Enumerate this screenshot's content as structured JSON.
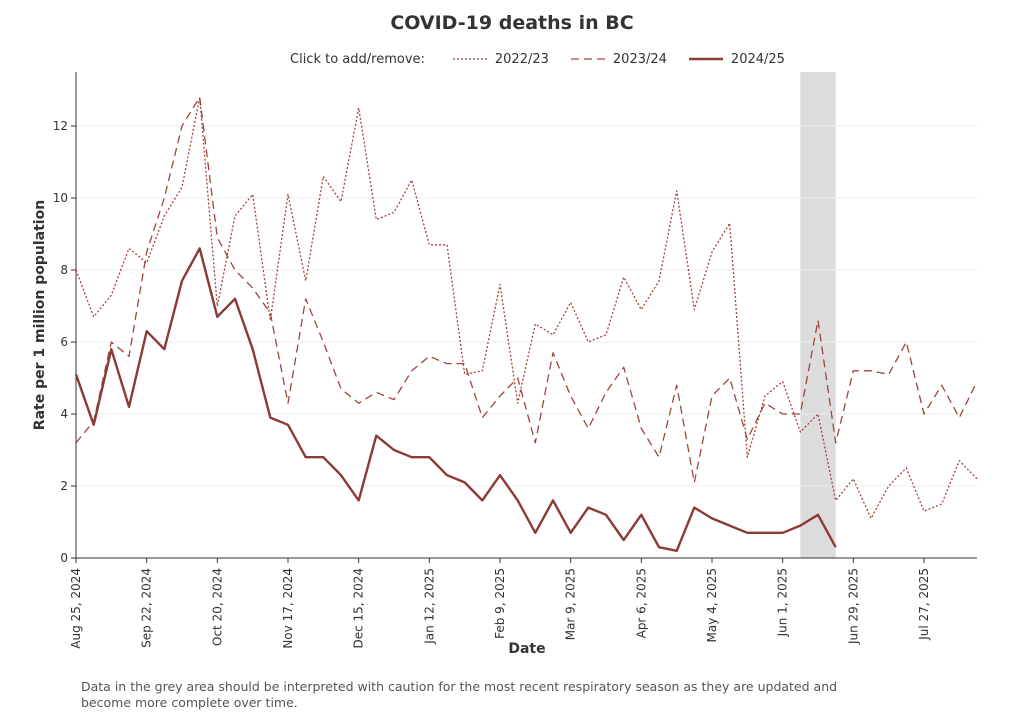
{
  "chart_data": {
    "type": "line",
    "title": "COVID-19 deaths in BC",
    "xlabel": "Date",
    "ylabel": "Rate per 1 million population",
    "legend_prompt": "Click to add/remove:",
    "ylim": [
      0,
      13.5
    ],
    "yticks": [
      "0",
      "2",
      "4",
      "6",
      "8",
      "10",
      "12"
    ],
    "xticks": [
      "Aug 25, 2024",
      "Sep 22, 2024",
      "Oct 20, 2024",
      "Nov 17, 2024",
      "Dec 15, 2024",
      "Jan 12, 2025",
      "Feb 9, 2025",
      "Mar 9, 2025",
      "Apr 6, 2025",
      "May 4, 2025",
      "Jun 1, 2025",
      "Jun 29, 2025",
      "Jul 27, 2025"
    ],
    "x_dates": [
      "Aug 25",
      "Sep 1",
      "Sep 8",
      "Sep 15",
      "Sep 22",
      "Sep 29",
      "Oct 6",
      "Oct 13",
      "Oct 20",
      "Oct 27",
      "Nov 3",
      "Nov 10",
      "Nov 17",
      "Nov 24",
      "Dec 1",
      "Dec 8",
      "Dec 15",
      "Dec 22",
      "Dec 29",
      "Jan 5",
      "Jan 12",
      "Jan 19",
      "Jan 26",
      "Feb 2",
      "Feb 9",
      "Feb 16",
      "Feb 23",
      "Mar 2",
      "Mar 9",
      "Mar 16",
      "Mar 23",
      "Mar 30",
      "Apr 6",
      "Apr 13",
      "Apr 20",
      "Apr 27",
      "May 4",
      "May 11",
      "May 18",
      "May 25",
      "Jun 1",
      "Jun 8",
      "Jun 15",
      "Jun 22",
      "Jun 29",
      "Jul 6",
      "Jul 13",
      "Jul 20",
      "Jul 27",
      "Aug 3",
      "Aug 10",
      "Aug 17"
    ],
    "grid": true,
    "legend_position": "top",
    "shaded_region": {
      "from": "Jun 8",
      "to": "Jun 22",
      "color": "#dcdcdc"
    },
    "series": [
      {
        "name": "2022/23",
        "style": "dotted",
        "color": "#a0453e",
        "values": [
          8.0,
          6.7,
          7.3,
          8.6,
          8.2,
          9.5,
          10.3,
          12.8,
          7.0,
          9.5,
          10.1,
          6.6,
          10.1,
          7.7,
          10.6,
          9.9,
          12.5,
          9.4,
          9.6,
          10.5,
          8.7,
          8.7,
          5.1,
          5.2,
          7.6,
          4.3,
          6.5,
          6.2,
          7.1,
          6.0,
          6.2,
          7.8,
          6.9,
          7.7,
          10.2,
          6.9,
          8.5,
          9.3,
          2.8,
          4.5,
          4.9,
          3.5,
          4.0,
          1.6,
          2.2,
          1.1,
          2.0,
          2.5,
          1.3,
          1.5,
          2.7,
          2.2
        ]
      },
      {
        "name": "2023/24",
        "style": "dashed",
        "color": "#a0453e",
        "values": [
          3.2,
          3.8,
          6.0,
          5.6,
          8.5,
          10.0,
          12.0,
          12.8,
          8.9,
          8.0,
          7.5,
          6.8,
          4.3,
          7.2,
          6.0,
          4.7,
          4.3,
          4.6,
          4.4,
          5.2,
          5.6,
          5.4,
          5.4,
          3.9,
          4.5,
          5.0,
          3.2,
          5.7,
          4.5,
          3.6,
          4.6,
          5.3,
          3.6,
          2.8,
          4.8,
          2.1,
          4.5,
          5.0,
          3.3,
          4.3,
          4.0,
          4.0,
          6.6,
          3.2,
          5.2,
          5.2,
          5.1,
          6.0,
          4.0,
          4.8,
          3.9,
          4.9
        ]
      },
      {
        "name": "2024/25",
        "style": "solid",
        "color": "#8b3a35",
        "values": [
          5.1,
          3.7,
          5.8,
          4.2,
          6.3,
          5.8,
          7.7,
          8.6,
          6.7,
          7.2,
          5.8,
          3.9,
          3.7,
          2.8,
          2.8,
          2.3,
          1.6,
          3.4,
          3.0,
          2.8,
          2.8,
          2.3,
          2.1,
          1.6,
          2.3,
          1.6,
          0.7,
          1.6,
          0.7,
          1.4,
          1.2,
          0.5,
          1.2,
          0.3,
          0.2,
          1.4,
          1.1,
          0.9,
          0.7,
          0.7,
          0.7,
          0.9,
          1.2,
          0.3
        ]
      }
    ],
    "note": "Data in the grey area should be interpreted with caution for the most recent respiratory season as they are updated and become more complete over time."
  }
}
